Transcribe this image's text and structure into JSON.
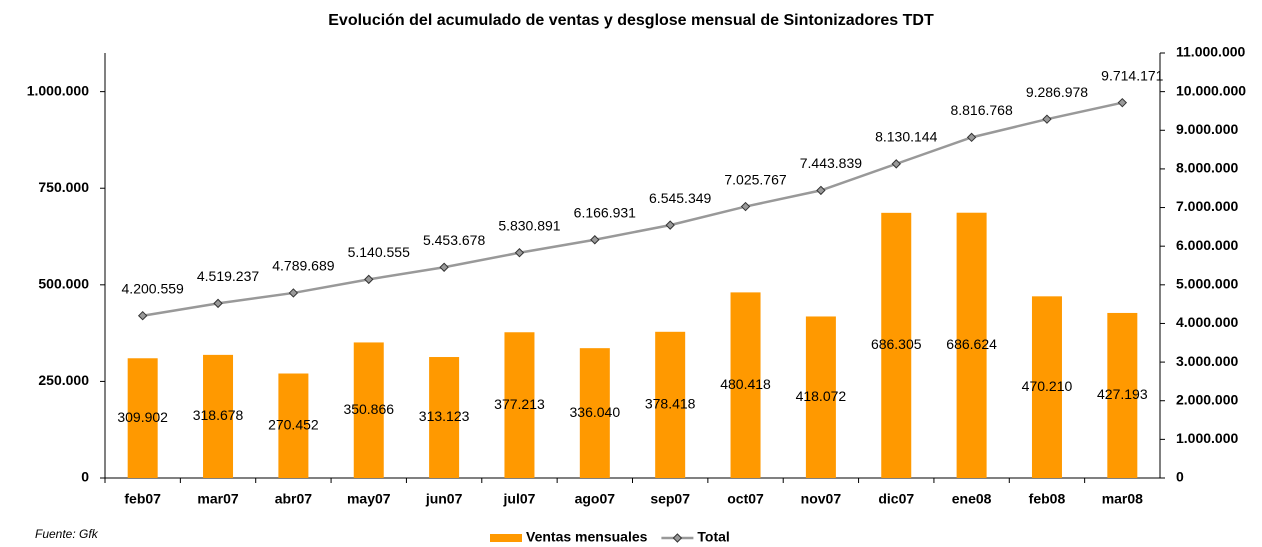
{
  "chart_data": {
    "type": "bar",
    "title": "Evolución del acumulado de ventas y desglose mensual de Sintonizadores TDT",
    "source": "Fuente: Gfk",
    "categories": [
      "feb07",
      "mar07",
      "abr07",
      "may07",
      "jun07",
      "jul07",
      "ago07",
      "sep07",
      "oct07",
      "nov07",
      "dic07",
      "ene08",
      "feb08",
      "mar08"
    ],
    "series": [
      {
        "name": "Ventas mensuales",
        "type": "bar",
        "color": "#ff9900",
        "values": [
          309902,
          318678,
          270452,
          350866,
          313123,
          377213,
          336040,
          378418,
          480418,
          418072,
          686305,
          686624,
          470210,
          427193
        ],
        "value_labels": [
          "309.902",
          "318.678",
          "270.452",
          "350.866",
          "313.123",
          "377.213",
          "336.040",
          "378.418",
          "480.418",
          "418.072",
          "686.305",
          "686.624",
          "470.210",
          "427.193"
        ]
      },
      {
        "name": "Total",
        "type": "line",
        "axis": "y2",
        "color": "#999999",
        "values": [
          4200559,
          4519237,
          4789689,
          5140555,
          5453678,
          5830891,
          6166931,
          6545349,
          7025767,
          7443839,
          8130144,
          8816768,
          9286978,
          9714171
        ],
        "value_labels": [
          "4.200.559",
          "4.519.237",
          "4.789.689",
          "5.140.555",
          "5.453.678",
          "5.830.891",
          "6.166.931",
          "6.545.349",
          "7.025.767",
          "7.443.839",
          "8.130.144",
          "8.816.768",
          "9.286.978",
          "9.714.171"
        ]
      }
    ],
    "ylim": [
      0,
      1100000
    ],
    "yticks": [
      0,
      {
        "value": 250000,
        "label": "250.000"
      },
      {
        "value": 500000,
        "label": "500.000"
      },
      {
        "value": 750000,
        "label": "750.000"
      },
      {
        "value": 1000000,
        "label": "1.000.000"
      }
    ],
    "y2lim": [
      0,
      11000000
    ],
    "y2ticks": [
      0,
      {
        "value": 1000000,
        "label": "1.000.000"
      },
      {
        "value": 2000000,
        "label": "2.000.000"
      },
      {
        "value": 3000000,
        "label": "3.000.000"
      },
      {
        "value": 4000000,
        "label": "4.000.000"
      },
      {
        "value": 5000000,
        "label": "5.000.000"
      },
      {
        "value": 6000000,
        "label": "6.000.000"
      },
      {
        "value": 7000000,
        "label": "7.000.000"
      },
      {
        "value": 8000000,
        "label": "8.000.000"
      },
      {
        "value": 9000000,
        "label": "9.000.000"
      },
      {
        "value": 10000000,
        "label": "10.000.000"
      },
      {
        "value": 11000000,
        "label": "11.000.000"
      }
    ],
    "legend": "bottom",
    "grid": false
  }
}
